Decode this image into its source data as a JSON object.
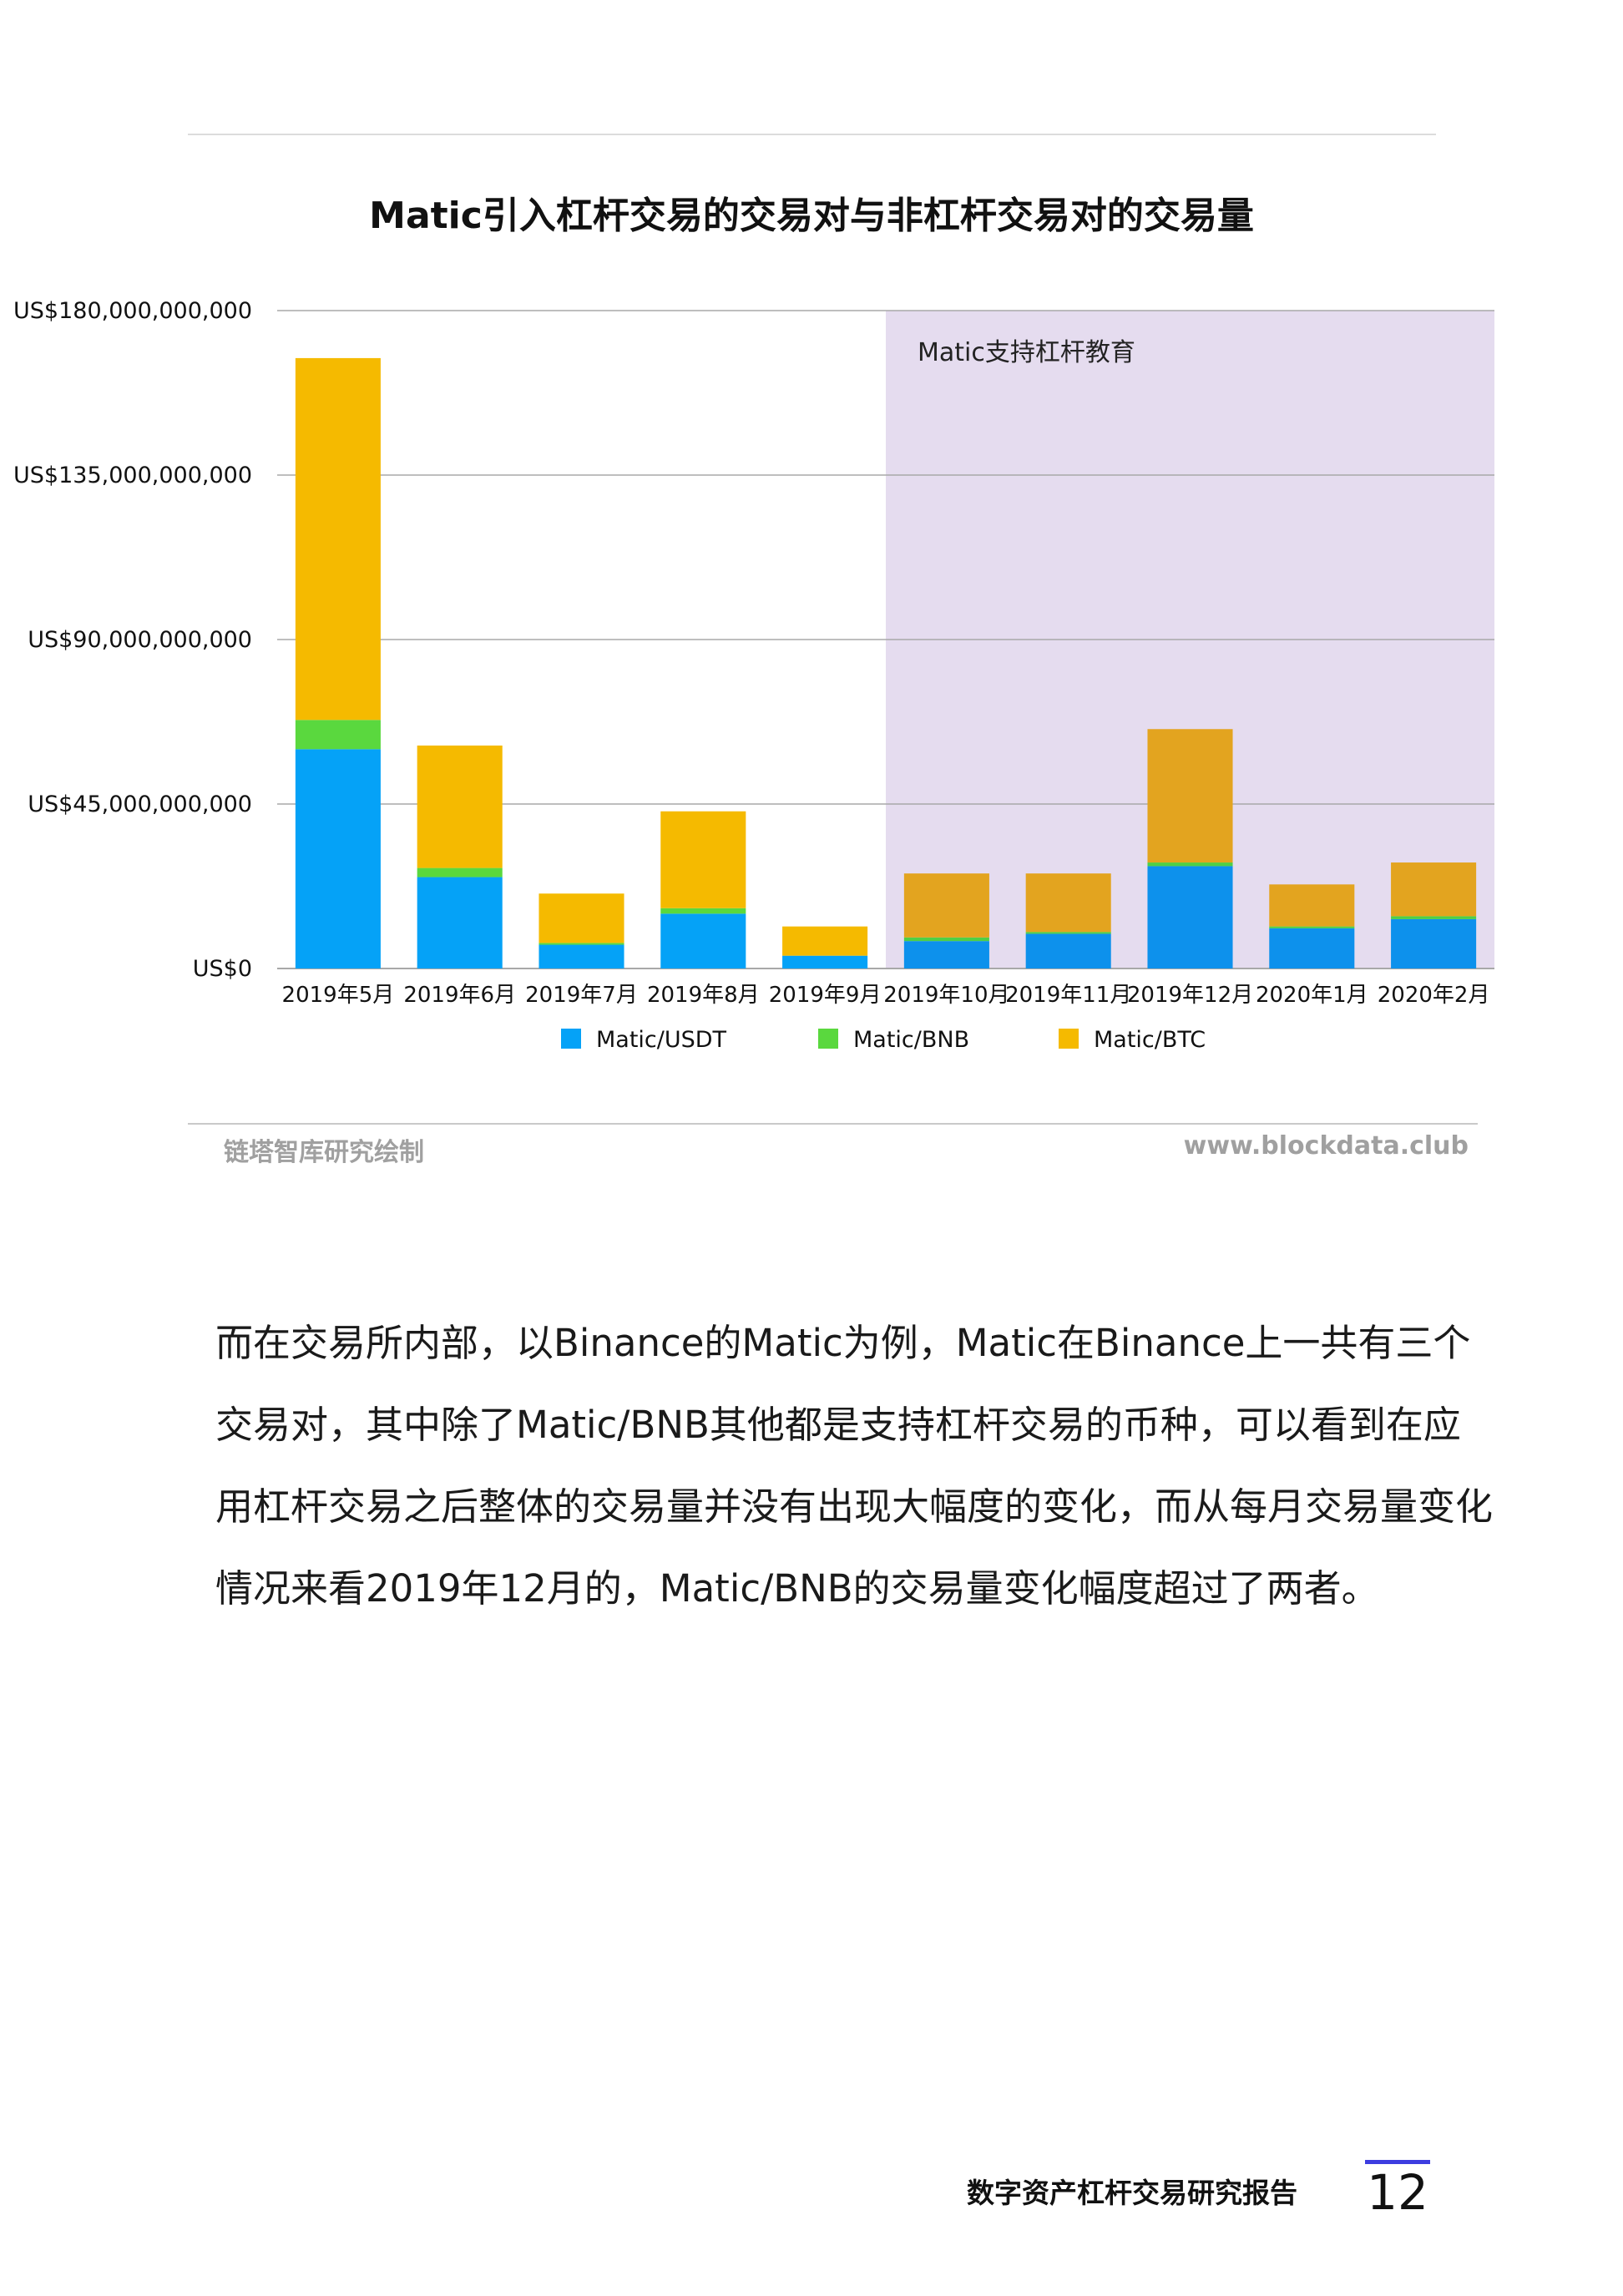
{
  "chart_data": {
    "type": "bar",
    "stacked": true,
    "title": "Matic引入杠杆交易的交易对与非杠杆交易对的交易量",
    "categories": [
      "2019年5月",
      "2019年6月",
      "2019年7月",
      "2019年8月",
      "2019年9月",
      "2019年10月",
      "2019年11月",
      "2019年12月",
      "2020年1月",
      "2020年2月"
    ],
    "series": [
      {
        "name": "Matic/USDT",
        "color": "#05a2f7",
        "values": [
          60000000000,
          25000000000,
          6500000000,
          15000000000,
          3500000000,
          7500000000,
          9500000000,
          28000000000,
          11000000000,
          13500000000
        ]
      },
      {
        "name": "Matic/BNB",
        "color": "#5ad83e",
        "values": [
          8000000000,
          2500000000,
          500000000,
          1500000000,
          0,
          1000000000,
          500000000,
          1000000000,
          500000000,
          800000000
        ]
      },
      {
        "name": "Matic/BTC",
        "color": "#f5ba00",
        "values": [
          99000000000,
          33500000000,
          13500000000,
          26500000000,
          8000000000,
          17500000000,
          16000000000,
          36500000000,
          11500000000,
          14700000000
        ]
      }
    ],
    "yticks": [
      "US$0",
      "US$45,000,000,000",
      "US$90,000,000,000",
      "US$135,000,000,000",
      "US$180,000,000,000"
    ],
    "ylim": [
      0,
      180000000000
    ],
    "grid": true,
    "legend_position": "bottom",
    "shaded_region": {
      "from_category": "2019年10月",
      "to_category": "2020年2月",
      "label": "Matic支持杠杆教育",
      "color": "#e5dcef"
    }
  },
  "footer": {
    "credit_left": "链塔智库研究绘制",
    "credit_right": "www.blockdata.club",
    "report_title": "数字资产杠杆交易研究报告",
    "page_number": "12"
  },
  "body_text": "而在交易所内部，以Binance的Matic为例，Matic在Binance上一共有三个交易对，其中除了Matic/BNB其他都是支持杠杆交易的币种，可以看到在应用杠杆交易之后整体的交易量并没有出现大幅度的变化，而从每月交易量变化情况来看2019年12月的，Matic/BNB的交易量变化幅度超过了两者。"
}
